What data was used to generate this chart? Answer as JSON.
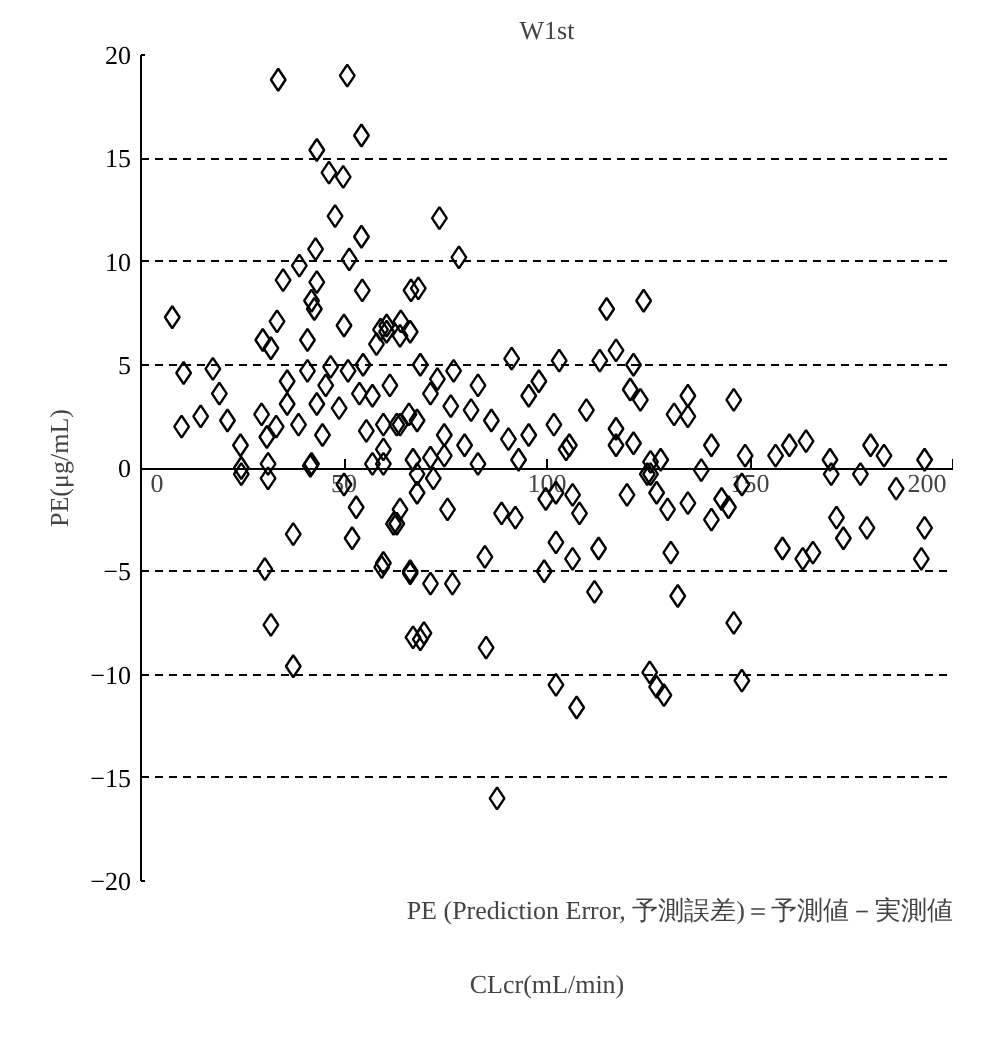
{
  "chart_data": {
    "type": "scatter",
    "title": "W1st",
    "xlabel": "CLcr(mL/min)",
    "ylabel": "PE(μg/mL)",
    "annotations": [
      "PE (Prediction Error, 予測誤差)＝予測値－実測値"
    ],
    "xlim": [
      0,
      200
    ],
    "ylim": [
      -20,
      20
    ],
    "xticks": [
      0,
      50,
      100,
      150,
      200
    ],
    "yticks": [
      -20,
      -15,
      -10,
      -5,
      0,
      5,
      10,
      15,
      20
    ],
    "grid": "y",
    "marker": "diamond",
    "series": [
      {
        "color": "#000000",
        "x": [
          33.8,
          50.8,
          54.3,
          43.3,
          46.3,
          49.8,
          47.8,
          54.3,
          43,
          39,
          35,
          43.3,
          51.3,
          54.5,
          42,
          7.7,
          33.5,
          42.7,
          30,
          32,
          41,
          50,
          59,
          64,
          66.5,
          10.5,
          17.7,
          19.3,
          14.7,
          10,
          21.3,
          24.5,
          29.7,
          33.3,
          31,
          36,
          41,
          36,
          46.7,
          45.5,
          51,
          54.7,
          58,
          60.5,
          43.3,
          48.8,
          53.8,
          57,
          59.7,
          38.8,
          44.7,
          55.5,
          63.8,
          24.7,
          31.3,
          42,
          57,
          66,
          24.7,
          31.3,
          41.7,
          37.5,
          30.5,
          32,
          37.5,
          50,
          53,
          52,
          63,
          59.3,
          66.3,
          67,
          73.5,
          78.3,
          68.3,
          114.7,
          123.8,
          91.3,
          103,
          98,
          95.5,
          113,
          117,
          121.3,
          120.5,
          123,
          109.7,
          101.7,
          105.5,
          117,
          121.3,
          95.5,
          93,
          63.8,
          60.5,
          66.3,
          68.8,
          73,
          77,
          83,
          71.3,
          76.3,
          81.3,
          86.3,
          90.5,
          68,
          74.7,
          79.7,
          63,
          61.3,
          59.7,
          71.3,
          83,
          125.5,
          59.7,
          67,
          74.7,
          104.7,
          117,
          124.7,
          119.7,
          68,
          72,
          68,
          63.8,
          62.2,
          75.5,
          88.8,
          92.2,
          102.2,
          99.7,
          106.3,
          108,
          102.2,
          84.7,
          59.7,
          66.3,
          71.3,
          76.7,
          99.3,
          106.3,
          112.7,
          111.7,
          69.7,
          68.8,
          85,
          102.2,
          107.3,
          87.7,
          125.3,
          127,
          134.7,
          131.3,
          134.7,
          146,
          128,
          140.5,
          148.8,
          138,
          156.3,
          159.7,
          163.8,
          169.7,
          170,
          177.2,
          179.7,
          183,
          186,
          193,
          125.5,
          127,
          129.7,
          134.7,
          143,
          148,
          140.5,
          144.7,
          158,
          163,
          165.5,
          171.3,
          173,
          178.8,
          193,
          192.2,
          130.5,
          132.2,
          146,
          148,
          128.8
        ],
        "values": [
          18.8,
          19.0,
          16.1,
          15.4,
          14.3,
          14.1,
          12.2,
          11.2,
          10.6,
          9.8,
          9.1,
          9.0,
          10.1,
          8.6,
          8.1,
          7.3,
          7.1,
          7.7,
          6.2,
          5.8,
          6.2,
          6.9,
          6.7,
          7.1,
          8.6,
          4.6,
          4.8,
          3.6,
          2.5,
          2.0,
          2.3,
          1.1,
          2.6,
          2.0,
          1.5,
          3.1,
          4.7,
          4.2,
          4.9,
          4.0,
          4.7,
          5.0,
          6.0,
          6.6,
          3.1,
          2.9,
          3.6,
          3.5,
          2.1,
          2.1,
          1.6,
          1.8,
          2.1,
          0.0,
          0.2,
          0.2,
          0.2,
          2.6,
          -0.3,
          -0.5,
          0.1,
          -3.2,
          -4.9,
          -7.6,
          -9.6,
          -0.8,
          -1.9,
          -3.4,
          -2.7,
          -4.8,
          -5.0,
          -8.2,
          12.1,
          10.2,
          8.7,
          7.7,
          8.1,
          5.3,
          5.2,
          4.2,
          3.5,
          5.2,
          5.7,
          5.0,
          3.8,
          3.3,
          2.8,
          2.1,
          1.1,
          1.9,
          1.2,
          1.6,
          0.4,
          6.4,
          6.9,
          6.6,
          5.0,
          4.3,
          4.7,
          4.0,
          3.6,
          3.0,
          2.8,
          2.3,
          1.4,
          2.3,
          1.6,
          1.1,
          2.1,
          4.0,
          0.9,
          0.5,
          0.2,
          0.3,
          0.2,
          0.4,
          0.6,
          0.9,
          1.1,
          -0.3,
          -1.3,
          -0.3,
          -0.5,
          -1.2,
          -2.0,
          -2.7,
          -2.0,
          -2.2,
          -2.4,
          -1.2,
          -1.5,
          -1.3,
          -2.2,
          -3.6,
          -4.3,
          -4.6,
          -5.1,
          -5.6,
          -5.6,
          -5.0,
          -4.4,
          -3.9,
          -6.0,
          -8.0,
          -8.3,
          -8.7,
          -10.5,
          -11.6,
          -16.0,
          -9.9,
          -10.6,
          3.5,
          2.6,
          2.5,
          3.3,
          0.4,
          1.1,
          0.6,
          -0.1,
          0.6,
          1.1,
          1.3,
          0.4,
          -0.3,
          -0.3,
          1.1,
          0.6,
          -1.0,
          0.4,
          -0.3,
          -1.2,
          -2.0,
          -1.7,
          -1.5,
          -0.8,
          -2.5,
          -1.9,
          -3.9,
          -4.4,
          -4.1,
          -2.4,
          -3.4,
          -2.9,
          -2.9,
          -4.4,
          -4.1,
          -6.2,
          -7.5,
          -10.3,
          -11.0
        ]
      }
    ]
  }
}
